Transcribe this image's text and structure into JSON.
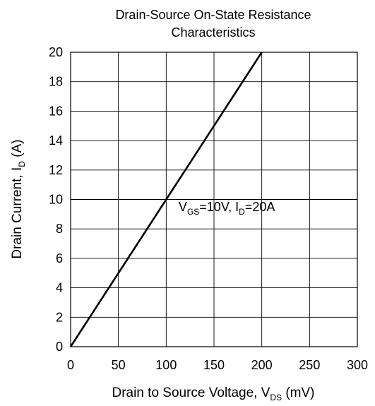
{
  "chart_data": {
    "type": "line",
    "title_line1": "Drain-Source On-State Resistance",
    "title_line2": "Characteristics",
    "xlabel": {
      "main": "Drain to Source Voltage, V",
      "sub": "DS",
      "unit": " (mV)"
    },
    "ylabel": {
      "main": "Drain Current, I",
      "sub": "D",
      "unit": " (A)"
    },
    "xlim": [
      0,
      300
    ],
    "ylim": [
      0,
      20
    ],
    "xticks": [
      "0",
      "50",
      "100",
      "150",
      "200",
      "250",
      "300"
    ],
    "yticks": [
      "0",
      "2",
      "4",
      "6",
      "8",
      "10",
      "12",
      "14",
      "16",
      "18",
      "20"
    ],
    "grid": true,
    "series": [
      {
        "x": [
          0,
          200
        ],
        "y": [
          0,
          20
        ],
        "color": "#000000"
      }
    ],
    "annotation": {
      "v": "V",
      "v_sub": "GS",
      "mid": "=10V, I",
      "i_sub": "D",
      "end": "=20A",
      "x": 113,
      "y": 9.2
    }
  }
}
